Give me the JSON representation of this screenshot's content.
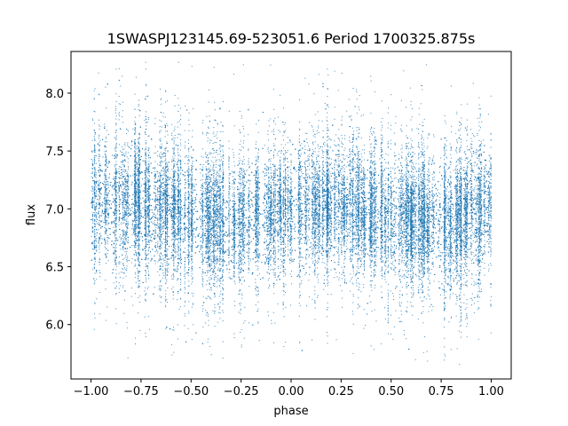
{
  "chart_data": {
    "type": "scatter",
    "title": "1SWASPJ123145.69-523051.6 Period 1700325.875s",
    "xlabel": "phase",
    "ylabel": "flux",
    "xlim": [
      -1.1,
      1.1
    ],
    "ylim": [
      5.53,
      8.36
    ],
    "x_ticks": [
      -1.0,
      -0.75,
      -0.5,
      -0.25,
      0.0,
      0.25,
      0.5,
      0.75,
      1.0
    ],
    "x_tick_labels": [
      "−1.00",
      "−0.75",
      "−0.50",
      "−0.25",
      "0.00",
      "0.25",
      "0.50",
      "0.75",
      "1.00"
    ],
    "y_ticks": [
      6.0,
      6.5,
      7.0,
      7.5,
      8.0
    ],
    "y_tick_labels": [
      "6.0",
      "6.5",
      "7.0",
      "7.5",
      "8.0"
    ],
    "grid": false,
    "marker_color": "#1f77b4",
    "series": [
      {
        "x_range": [
          -1.0,
          1.0
        ],
        "mean_flux_profile": [
          {
            "phase": -1.0,
            "flux": 7.02
          },
          {
            "phase": -0.75,
            "flux": 7.05
          },
          {
            "phase": -0.5,
            "flux": 6.93
          },
          {
            "phase": -0.25,
            "flux": 6.86
          },
          {
            "phase": 0.0,
            "flux": 7.0
          },
          {
            "phase": 0.25,
            "flux": 7.05
          },
          {
            "phase": 0.5,
            "flux": 6.93
          },
          {
            "phase": 0.75,
            "flux": 6.86
          },
          {
            "phase": 1.0,
            "flux": 7.02
          }
        ],
        "core_scatter": 0.22,
        "flux_min": 5.65,
        "flux_max": 8.27
      }
    ]
  }
}
